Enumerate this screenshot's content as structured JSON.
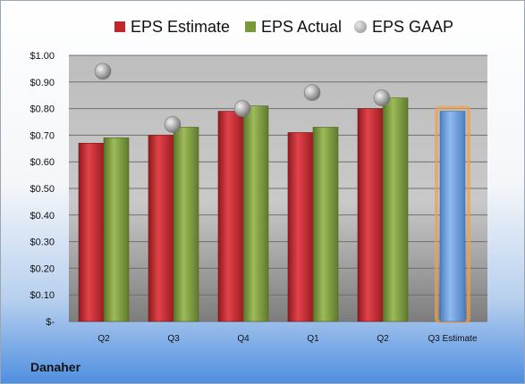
{
  "brand": "Danaher",
  "colors": {
    "estimate": "#c0272d",
    "actual": "#7a9a3a",
    "gaap": "#9a9a9a",
    "projection": "#6d9fdc",
    "highlight": "#f0a050"
  },
  "chart_data": {
    "type": "bar",
    "categories": [
      "Q2",
      "Q3",
      "Q4",
      "Q1",
      "Q2",
      "Q3 Estimate"
    ],
    "series": [
      {
        "name": "EPS Estimate",
        "values": [
          0.67,
          0.7,
          0.79,
          0.71,
          0.8,
          null
        ]
      },
      {
        "name": "EPS Actual",
        "values": [
          0.69,
          0.73,
          0.81,
          0.73,
          0.84,
          null
        ]
      },
      {
        "name": "EPS GAAP",
        "marker": "circle",
        "values": [
          0.94,
          0.74,
          0.8,
          0.86,
          0.84,
          null
        ]
      },
      {
        "values": [
          null,
          null,
          null,
          null,
          null,
          0.79
        ]
      }
    ],
    "y_ticks": [
      "$-",
      "$0.10",
      "$0.20",
      "$0.30",
      "$0.40",
      "$0.50",
      "$0.60",
      "$0.70",
      "$0.80",
      "$0.90",
      "$1.00"
    ],
    "ylim": [
      0,
      1.0
    ],
    "grid": true,
    "legend": "top"
  }
}
